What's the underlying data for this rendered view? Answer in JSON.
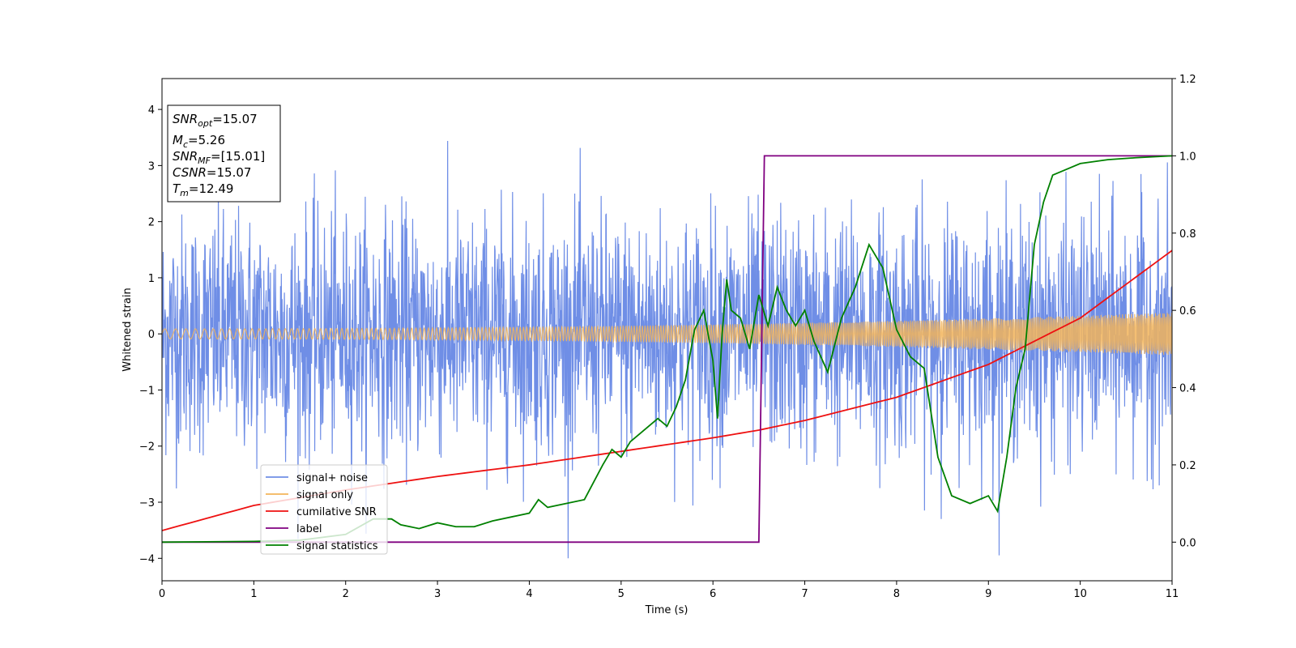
{
  "chart_data": {
    "type": "line",
    "xlabel": "Time (s)",
    "ylabel": "Whitened strain",
    "xlim": [
      0,
      11
    ],
    "ylim": [
      -4.4,
      4.55
    ],
    "y2lim": [
      -0.1,
      1.2
    ],
    "xticks": [
      "0",
      "1",
      "2",
      "3",
      "4",
      "5",
      "6",
      "7",
      "8",
      "9",
      "10",
      "11"
    ],
    "yticks": [
      "4",
      "3",
      "2",
      "1",
      "0",
      "−1",
      "−2",
      "−3",
      "−4"
    ],
    "y2ticks": [
      "0.0",
      "0.2",
      "0.4",
      "0.6",
      "0.8",
      "1.0",
      "1.2"
    ],
    "grid": false,
    "legend_placement": "lower-left",
    "colors": {
      "signal_noise": "#6f8ee6",
      "signal_only": "#f2b45a",
      "cumulative_snr": "#ee1111",
      "label": "#800080",
      "signal_statistics": "#008000"
    },
    "series": [
      {
        "name": "signal+ noise",
        "axis": "left",
        "approx_range": [
          -4.0,
          4.15
        ]
      },
      {
        "name": "signal only",
        "axis": "left",
        "amplitude_start": 0.09,
        "amplitude_end": 0.38
      },
      {
        "name": "cumilative SNR",
        "axis": "right",
        "x": [
          0,
          1,
          2,
          3,
          4,
          5,
          6,
          6.5,
          7,
          8,
          9,
          10,
          11
        ],
        "y": [
          0.03,
          0.095,
          0.135,
          0.17,
          0.2,
          0.235,
          0.27,
          0.29,
          0.315,
          0.375,
          0.46,
          0.58,
          0.755
        ]
      },
      {
        "name": "label",
        "axis": "right",
        "x": [
          0,
          6.5,
          6.56,
          11
        ],
        "y": [
          0,
          0,
          1,
          1
        ]
      },
      {
        "name": "signal statistics",
        "axis": "right",
        "x": [
          0,
          1,
          1.5,
          2,
          2.3,
          2.5,
          2.6,
          2.8,
          3,
          3.2,
          3.4,
          3.6,
          3.8,
          4,
          4.1,
          4.2,
          4.4,
          4.6,
          4.8,
          4.9,
          5,
          5.1,
          5.2,
          5.4,
          5.5,
          5.6,
          5.7,
          5.8,
          5.9,
          6,
          6.05,
          6.1,
          6.15,
          6.2,
          6.3,
          6.4,
          6.5,
          6.6,
          6.7,
          6.8,
          6.9,
          7,
          7.1,
          7.25,
          7.4,
          7.55,
          7.7,
          7.85,
          8,
          8.15,
          8.3,
          8.45,
          8.6,
          8.8,
          9,
          9.1,
          9.2,
          9.3,
          9.4,
          9.5,
          9.6,
          9.7,
          9.8,
          10,
          10.3,
          10.6,
          11
        ],
        "y": [
          0,
          0.002,
          0.005,
          0.02,
          0.06,
          0.06,
          0.045,
          0.035,
          0.05,
          0.04,
          0.04,
          0.055,
          0.065,
          0.075,
          0.11,
          0.09,
          0.1,
          0.11,
          0.2,
          0.24,
          0.22,
          0.26,
          0.28,
          0.32,
          0.3,
          0.35,
          0.42,
          0.55,
          0.6,
          0.47,
          0.32,
          0.54,
          0.68,
          0.6,
          0.58,
          0.5,
          0.64,
          0.56,
          0.66,
          0.6,
          0.56,
          0.6,
          0.52,
          0.44,
          0.58,
          0.66,
          0.77,
          0.71,
          0.55,
          0.48,
          0.45,
          0.22,
          0.12,
          0.1,
          0.12,
          0.08,
          0.22,
          0.4,
          0.5,
          0.77,
          0.88,
          0.95,
          0.96,
          0.98,
          0.99,
          0.995,
          1.0
        ]
      }
    ]
  },
  "annotation": {
    "snr_opt_sym": "SNR",
    "snr_opt_sub": "opt",
    "snr_opt_val": "=15.07",
    "mc_sym": "M",
    "mc_sub": "c",
    "mc_val": "=5.26",
    "snr_mf_sym": "SNR",
    "snr_mf_sub": "MF",
    "snr_mf_val": "=[15.01]",
    "csnr_sym": "CSNR",
    "csnr_val": "=15.07",
    "tm_sym": "T",
    "tm_sub": "m",
    "tm_val": "=12.49"
  }
}
